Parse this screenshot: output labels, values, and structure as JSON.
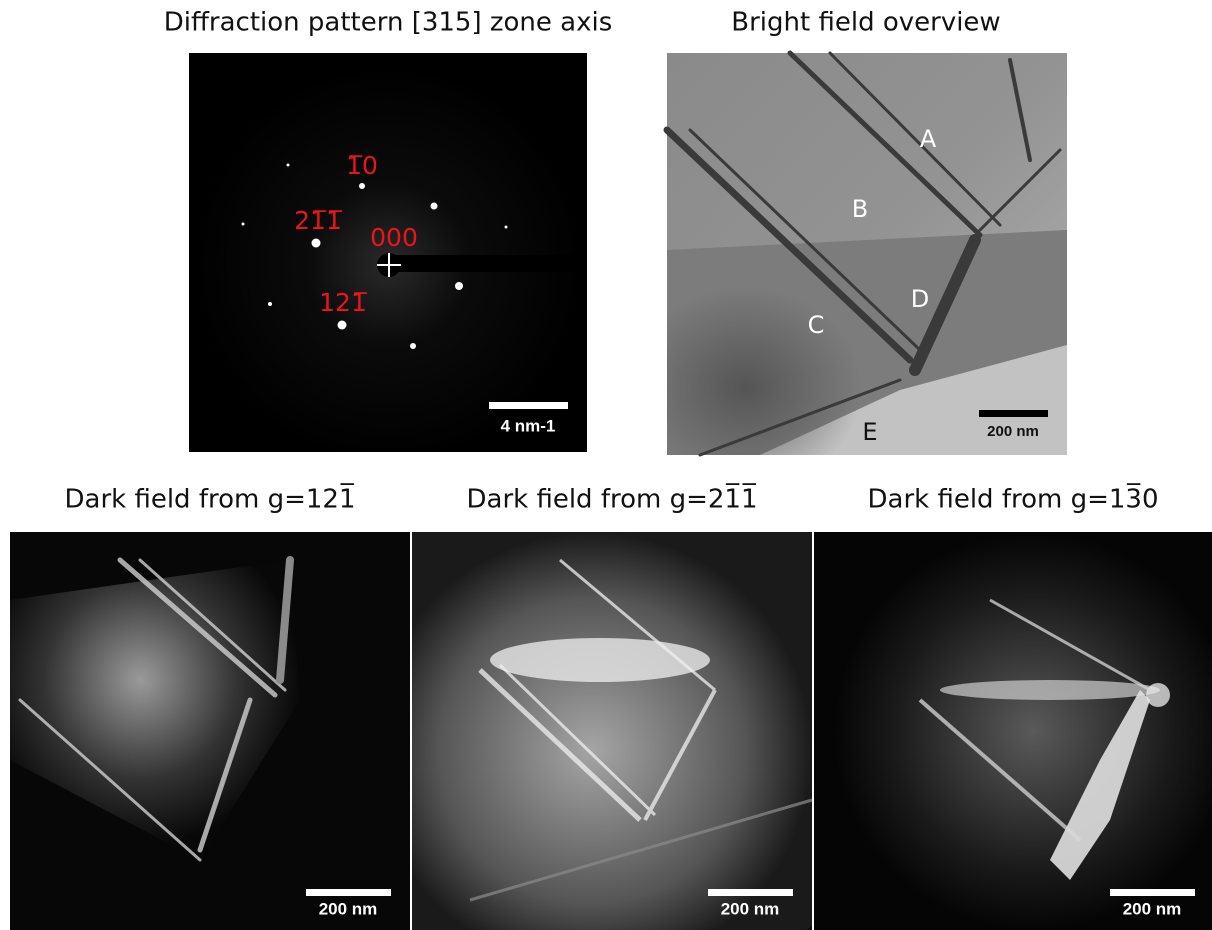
{
  "panels": [
    {
      "title": "Diffraction pattern [315] zone axis",
      "scale_bar": "4 nm-1",
      "labels": [
        "1̅0",
        "21̅1̅",
        "000",
        "121̅"
      ]
    },
    {
      "title": "Bright field overview",
      "scale_bar": "200 nm",
      "labels": [
        "A",
        "B",
        "C",
        "D",
        "E"
      ]
    },
    {
      "title": "Dark field from g=121̅",
      "scale_bar": "200 nm"
    },
    {
      "title": "Dark field from g=21̅1̅",
      "scale_bar": "200 nm"
    },
    {
      "title": "Dark field from g=13̅0",
      "scale_bar": "200 nm"
    }
  ]
}
